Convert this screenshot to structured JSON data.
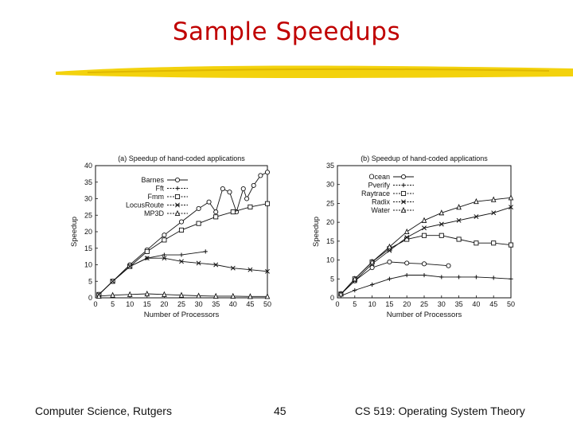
{
  "slide": {
    "title": "Sample Speedups",
    "footer_left": "Computer Science, Rutgers",
    "page_number": "45",
    "footer_right": "CS 519: Operating System Theory"
  },
  "colors": {
    "title": "#c00000",
    "underline": "#f2d000",
    "ink": "#111111"
  },
  "chart_data": [
    {
      "type": "line",
      "title": "(a) Speedup of hand-coded applications",
      "xlabel": "Number of Processors",
      "ylabel": "Speedup",
      "xlim": [
        0,
        50
      ],
      "ylim": [
        0,
        40
      ],
      "xticks": [
        0,
        5,
        10,
        15,
        20,
        25,
        30,
        35,
        40,
        45,
        50
      ],
      "yticks": [
        0,
        5,
        10,
        15,
        20,
        25,
        30,
        35,
        40
      ],
      "legend_position": "top-left",
      "series": [
        {
          "name": "Barnes",
          "marker": "circle",
          "x": [
            1,
            5,
            10,
            15,
            20,
            25,
            30,
            33,
            35,
            37,
            39,
            41,
            43,
            44,
            46,
            48,
            50
          ],
          "y": [
            1,
            5,
            10,
            14.5,
            19,
            23,
            27,
            29,
            26,
            33,
            32,
            26,
            33,
            30,
            34,
            37,
            38
          ]
        },
        {
          "name": "Fft",
          "marker": "plus",
          "x": [
            1,
            5,
            10,
            15,
            20,
            25,
            32
          ],
          "y": [
            1,
            5,
            9.5,
            12,
            13,
            13,
            14
          ]
        },
        {
          "name": "Fmm",
          "marker": "square",
          "x": [
            1,
            5,
            10,
            15,
            20,
            25,
            30,
            35,
            40,
            45,
            50
          ],
          "y": [
            1,
            5,
            9.5,
            14,
            17.5,
            20.5,
            22.5,
            24.5,
            26,
            27.5,
            28.5
          ]
        },
        {
          "name": "LocusRoute",
          "marker": "x",
          "x": [
            1,
            5,
            10,
            15,
            20,
            25,
            30,
            35,
            40,
            45,
            50
          ],
          "y": [
            1,
            5,
            9.5,
            12,
            12,
            11,
            10.5,
            10,
            9,
            8.5,
            8
          ]
        },
        {
          "name": "MP3D",
          "marker": "triangle",
          "x": [
            1,
            5,
            10,
            15,
            20,
            25,
            30,
            35,
            40,
            45,
            50
          ],
          "y": [
            0.5,
            0.8,
            1,
            1.2,
            1,
            0.8,
            0.6,
            0.5,
            0.5,
            0.4,
            0.4
          ]
        }
      ]
    },
    {
      "type": "line",
      "title": "(b) Speedup of hand-coded applications",
      "xlabel": "Number of Processors",
      "ylabel": "Speedup",
      "xlim": [
        0,
        50
      ],
      "ylim": [
        0,
        35
      ],
      "xticks": [
        0,
        5,
        10,
        15,
        20,
        25,
        30,
        35,
        40,
        45,
        50
      ],
      "yticks": [
        0,
        5,
        10,
        15,
        20,
        25,
        30,
        35
      ],
      "legend_position": "top-left",
      "series": [
        {
          "name": "Ocean",
          "marker": "circle",
          "x": [
            1,
            5,
            10,
            15,
            20,
            25,
            32
          ],
          "y": [
            1,
            4.5,
            8,
            9.5,
            9.2,
            9,
            8.5
          ]
        },
        {
          "name": "Pverify",
          "marker": "plus",
          "x": [
            1,
            5,
            10,
            15,
            20,
            25,
            30,
            35,
            40,
            45,
            50
          ],
          "y": [
            0.5,
            2,
            3.5,
            5,
            6,
            6,
            5.5,
            5.5,
            5.5,
            5.3,
            5
          ]
        },
        {
          "name": "Raytrace",
          "marker": "square",
          "x": [
            1,
            5,
            10,
            15,
            20,
            25,
            30,
            35,
            40,
            45,
            50
          ],
          "y": [
            1,
            5,
            9.5,
            13,
            15.5,
            16.5,
            16.5,
            15.5,
            14.5,
            14.5,
            14
          ]
        },
        {
          "name": "Radix",
          "marker": "x",
          "x": [
            1,
            5,
            10,
            15,
            20,
            25,
            30,
            35,
            40,
            45,
            50
          ],
          "y": [
            1,
            4.5,
            9,
            12.5,
            16,
            18.5,
            19.5,
            20.5,
            21.5,
            22.5,
            24
          ]
        },
        {
          "name": "Water",
          "marker": "triangle",
          "x": [
            1,
            5,
            10,
            15,
            20,
            25,
            30,
            35,
            40,
            45,
            50
          ],
          "y": [
            1,
            5,
            9.5,
            13.5,
            17.5,
            20.5,
            22.5,
            24,
            25.5,
            26,
            26.5
          ]
        }
      ]
    }
  ]
}
